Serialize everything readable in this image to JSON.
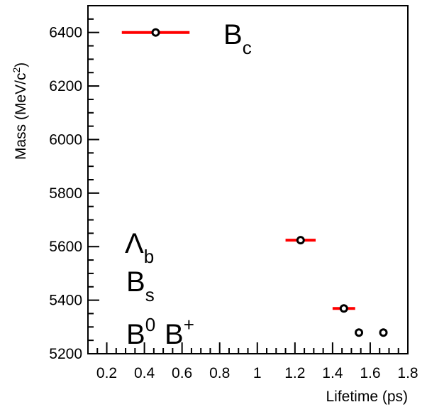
{
  "chart_data": {
    "type": "scatter",
    "xlabel": "Lifetime (ps)",
    "ylabel": "Mass (MeV/c",
    "ylabel_sup": "2",
    "ylabel_close": ")",
    "xlim": [
      0.1,
      1.8
    ],
    "ylim": [
      5200,
      6500
    ],
    "x_ticks": [
      "0.2",
      "0.4",
      "0.6",
      "0.8",
      "1",
      "1.2",
      "1.4",
      "1.6",
      "1.8"
    ],
    "y_ticks": [
      "5200",
      "5400",
      "5600",
      "5800",
      "6000",
      "6200",
      "6400"
    ],
    "grid": false,
    "error_bar_color": "#ff0000",
    "marker_color": "#000000",
    "points": [
      {
        "x": 0.46,
        "y": 6400,
        "xerr_lo": 0.18,
        "xerr_hi": 0.18
      },
      {
        "x": 1.23,
        "y": 5624,
        "xerr_lo": 0.08,
        "xerr_hi": 0.08
      },
      {
        "x": 1.46,
        "y": 5369,
        "xerr_lo": 0.06,
        "xerr_hi": 0.06
      },
      {
        "x": 1.54,
        "y": 5279,
        "xerr_lo": 0.0,
        "xerr_hi": 0.0
      },
      {
        "x": 1.67,
        "y": 5279,
        "xerr_lo": 0.0,
        "xerr_hi": 0.0
      }
    ],
    "labels": {
      "bc": {
        "base": "B",
        "sub": "c"
      },
      "lb": {
        "base": "Λ",
        "sub": "b"
      },
      "bs": {
        "base": "B",
        "sub": "s"
      },
      "b0": {
        "base": "B",
        "sup": "0"
      },
      "bplus": {
        "base": "B",
        "sup": "+"
      }
    }
  }
}
